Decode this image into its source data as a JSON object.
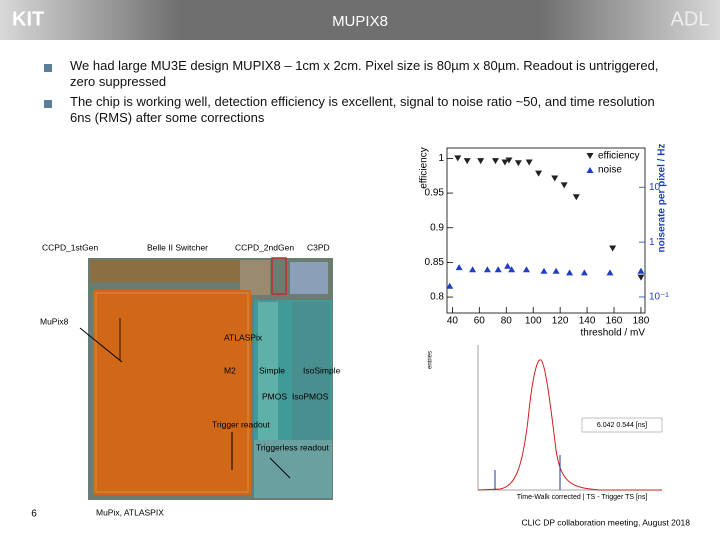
{
  "header": {
    "title": "MUPIX8",
    "logo_left": "KIT",
    "logo_right": "ADL"
  },
  "bullets": [
    "We had large MU3E design MUPIX8 – 1cm x 2cm. Pixel size is 80µm x 80µm. Readout is untriggered, zero suppressed",
    "The chip is working well, detection efficiency is excellent, signal to noise ratio ~50, and time resolution 6ns (RMS) after some corrections"
  ],
  "chip": {
    "labels": [
      "CCPD_1stGen",
      "Belle II Switcher",
      "CCPD_2ndGen",
      "C3PD",
      "MuPix8",
      "ATLASPix",
      "M2",
      "Simple",
      "IsoSimple",
      "PMOS",
      "IsoPMOS",
      "Trigger readout",
      "Triggerless readout"
    ],
    "caption": "MuPix, ATLASPIX"
  },
  "chart_data": {
    "type": "scatter",
    "xlabel": "threshold / mV",
    "ylabel": "efficiency",
    "y2label": "noiserate per pixel / Hz",
    "xlim": [
      36,
      183
    ],
    "xticks": [
      40,
      60,
      80,
      100,
      120,
      140,
      160,
      180
    ],
    "ylim": [
      0.777,
      1.015
    ],
    "yticks": [
      0.8,
      0.85,
      0.9,
      0.95,
      1
    ],
    "y2lim": [
      0.051,
      52
    ],
    "y2log": true,
    "y2ticks": [
      {
        "value": 0.1,
        "label": "10⁻¹"
      },
      1,
      10
    ],
    "legend": "upper right",
    "series": [
      {
        "name": "efficiency",
        "color": "#222222",
        "marker": "down",
        "x": [
          44,
          51,
          61,
          72,
          79,
          82,
          89,
          97,
          104,
          116,
          123,
          132,
          159,
          180
        ],
        "values": [
          1.0,
          0.996,
          0.996,
          0.996,
          0.994,
          0.997,
          0.993,
          0.994,
          0.978,
          0.971,
          0.961,
          0.944,
          0.87,
          0.828
        ]
      },
      {
        "name": "noise",
        "color": "#1f3fbf",
        "marker": "up",
        "axis": "y2",
        "x": [
          38,
          45,
          55,
          66,
          74,
          81,
          84,
          95,
          108,
          117,
          127,
          138,
          157,
          180
        ],
        "values": [
          0.16,
          0.35,
          0.32,
          0.32,
          0.32,
          0.37,
          0.32,
          0.32,
          0.3,
          0.3,
          0.28,
          0.28,
          0.28,
          0.3
        ]
      }
    ]
  },
  "timing_plot": {
    "ylabel": "entries",
    "fit": "6.042  0.544 [ns]",
    "xlabel": "Time-Walk corrected | TS - Trigger TS [ns]"
  },
  "footer": {
    "page": "6",
    "event": "CLIC DP collaboration meeting, August 2018"
  }
}
